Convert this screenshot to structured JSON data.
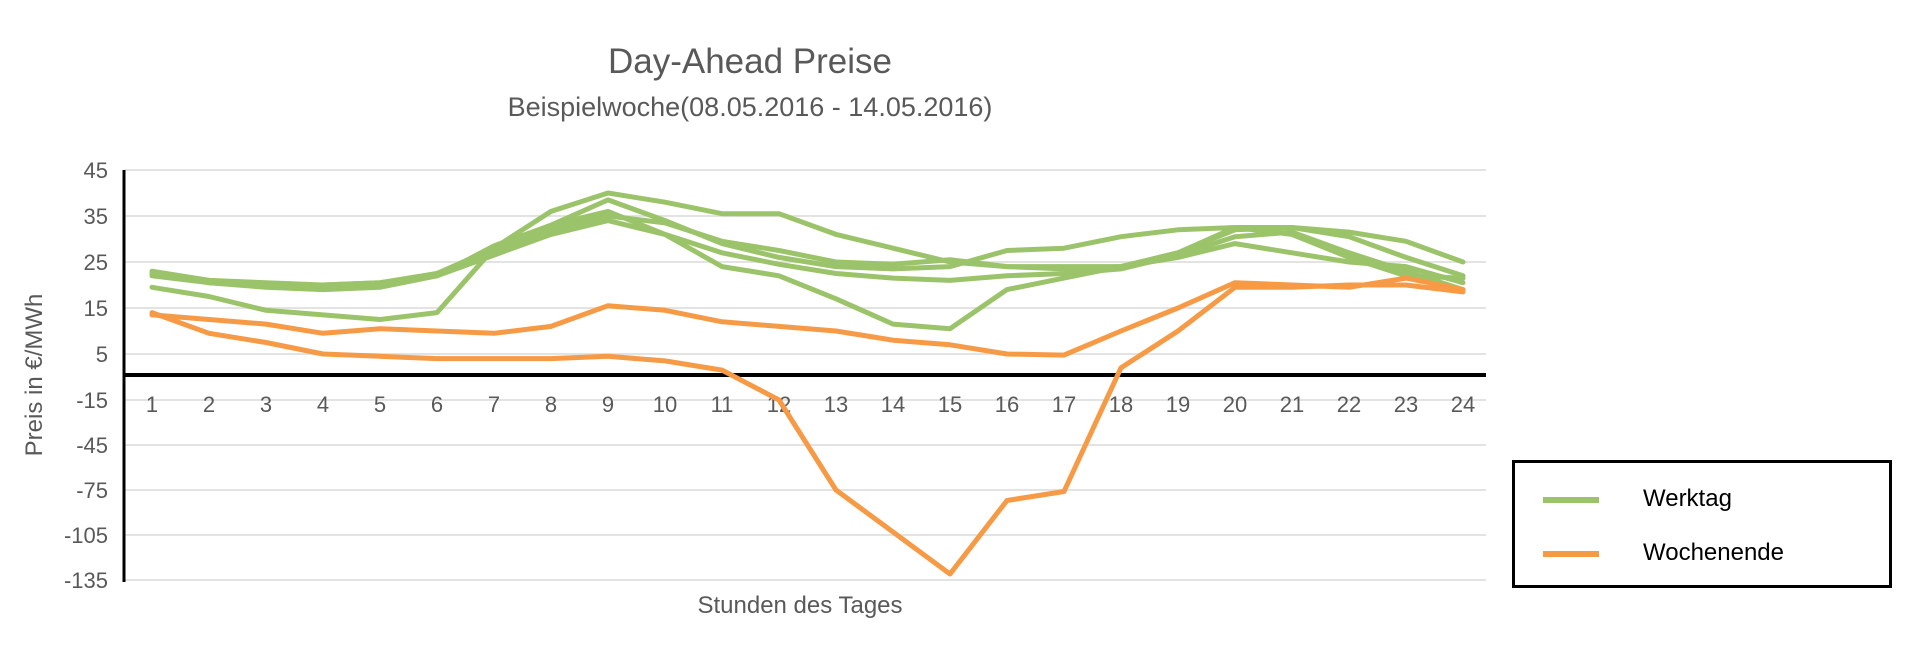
{
  "chart_data": {
    "type": "line",
    "title": "Day-Ahead Preise",
    "subtitle": "Beispielwoche(08.05.2016 - 14.05.2016)",
    "xlabel": "Stunden des Tages",
    "ylabel": "Preis in €/MWh",
    "x": [
      "1",
      "2",
      "3",
      "4",
      "5",
      "6",
      "7",
      "8",
      "9",
      "10",
      "11",
      "12",
      "13",
      "14",
      "15",
      "16",
      "17",
      "18",
      "19",
      "20",
      "21",
      "22",
      "23",
      "24"
    ],
    "y_ticks": [
      "45",
      "35",
      "25",
      "15",
      "5",
      "-15",
      "-45",
      "-75",
      "-105",
      "-135"
    ],
    "y_scale": "piecewise: 10 per step above -5, 30 per step below -15",
    "grid": true,
    "legend_position": "bottom-right",
    "series": [
      {
        "group": "Werktag",
        "color": "#9BC46A",
        "values": [
          23,
          21,
          20,
          19.5,
          20,
          22.5,
          28,
          36,
          40,
          38,
          35.5,
          35.5,
          31,
          28,
          25,
          24,
          23.5,
          24,
          27,
          32,
          32.5,
          30.5,
          26,
          22
        ]
      },
      {
        "group": "Werktag",
        "color": "#9BC46A",
        "values": [
          22.5,
          20.5,
          19.5,
          19,
          19.5,
          22,
          28.5,
          33,
          38.5,
          34,
          29,
          26,
          24,
          23.5,
          24,
          27.5,
          28,
          30.5,
          32,
          32.5,
          32.5,
          31.5,
          29.5,
          25
        ]
      },
      {
        "group": "Werktag",
        "color": "#9BC46A",
        "values": [
          19.5,
          17.5,
          14.5,
          13.5,
          12.5,
          14,
          28,
          33,
          36,
          31,
          24,
          22,
          17,
          11.5,
          10.5,
          19,
          21.5,
          24,
          26,
          29,
          27,
          25,
          24,
          20.5
        ]
      },
      {
        "group": "Werktag",
        "color": "#9BC46A",
        "values": [
          22,
          20.5,
          20,
          20,
          20.5,
          22,
          26.5,
          31,
          34,
          31,
          27,
          24.5,
          22.5,
          21.5,
          21,
          22,
          22.5,
          23.5,
          26.5,
          30.5,
          31.5,
          27,
          23,
          19
        ]
      },
      {
        "group": "Werktag",
        "color": "#9BC46A",
        "values": [
          22.5,
          21,
          20.5,
          20,
          20.5,
          22.5,
          27.5,
          32,
          35,
          33.5,
          29.5,
          27.5,
          25,
          24.5,
          25.5,
          24,
          24,
          24,
          27,
          32.5,
          31,
          26,
          22,
          21.5
        ]
      },
      {
        "group": "Wochenende",
        "color": "#F79A45",
        "values": [
          13.5,
          12.5,
          11.5,
          9.5,
          10.5,
          10,
          9.5,
          11,
          15.5,
          14.5,
          12,
          11,
          10,
          8,
          7,
          5,
          4.5,
          10,
          15,
          20.5,
          20,
          19.5,
          21.5,
          19
        ]
      },
      {
        "group": "Wochenende",
        "color": "#F79A45",
        "values": [
          14,
          9.5,
          7.5,
          5,
          4,
          3,
          3,
          3,
          4,
          2,
          -2,
          -15,
          -75,
          -103,
          -131,
          -82,
          -76,
          -1,
          10,
          19.5,
          19.5,
          20,
          20,
          18.5
        ]
      }
    ],
    "legend": [
      {
        "name": "Werktag",
        "color": "#9BC46A"
      },
      {
        "name": "Wochenende",
        "color": "#F79A45"
      }
    ]
  }
}
